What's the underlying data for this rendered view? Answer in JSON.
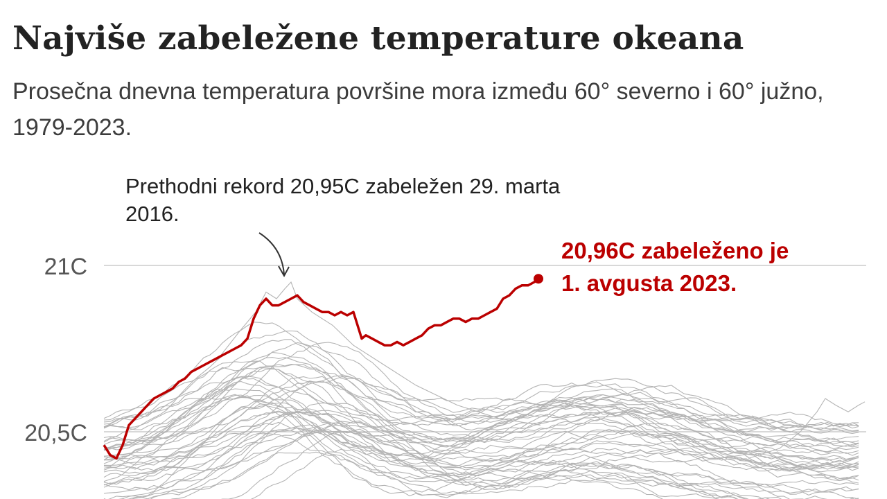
{
  "title": "Najviše zabeležene temperature okeana",
  "subtitle": "Prosečna dnevna temperatura površine mora između 60° severno i 60° južno, 1979-2023.",
  "chart_data": {
    "type": "line",
    "ylim": [
      20.3,
      21.5
    ],
    "y_ticks": [
      {
        "value": 21.0,
        "label": "21C"
      },
      {
        "value": 20.5,
        "label": "20,5C"
      }
    ],
    "colors": {
      "highlight": "#bb0000",
      "background_lines": "#b4b4b4",
      "grid": "#cccccc",
      "text": "#222222"
    },
    "highlight_series": {
      "year": "2023",
      "values": [
        [
          0.0,
          20.46
        ],
        [
          0.3,
          20.43
        ],
        [
          0.6,
          20.42
        ],
        [
          0.9,
          20.46
        ],
        [
          1.2,
          20.52
        ],
        [
          1.5,
          20.54
        ],
        [
          1.8,
          20.56
        ],
        [
          2.1,
          20.58
        ],
        [
          2.4,
          20.6
        ],
        [
          2.7,
          20.61
        ],
        [
          3.0,
          20.62
        ],
        [
          3.3,
          20.63
        ],
        [
          3.6,
          20.65
        ],
        [
          3.9,
          20.66
        ],
        [
          4.2,
          20.68
        ],
        [
          4.5,
          20.69
        ],
        [
          4.8,
          20.7
        ],
        [
          5.1,
          20.71
        ],
        [
          5.4,
          20.72
        ],
        [
          5.7,
          20.73
        ],
        [
          6.0,
          20.74
        ],
        [
          6.3,
          20.75
        ],
        [
          6.6,
          20.76
        ],
        [
          6.9,
          20.78
        ],
        [
          7.2,
          20.84
        ],
        [
          7.5,
          20.88
        ],
        [
          7.8,
          20.9
        ],
        [
          8.1,
          20.88
        ],
        [
          8.4,
          20.88
        ],
        [
          8.7,
          20.89
        ],
        [
          9.0,
          20.9
        ],
        [
          9.3,
          20.91
        ],
        [
          9.6,
          20.89
        ],
        [
          9.9,
          20.88
        ],
        [
          10.2,
          20.87
        ],
        [
          10.5,
          20.86
        ],
        [
          10.8,
          20.86
        ],
        [
          11.1,
          20.85
        ],
        [
          11.4,
          20.86
        ],
        [
          11.7,
          20.85
        ],
        [
          12.0,
          20.86
        ],
        [
          12.2,
          20.82
        ],
        [
          12.4,
          20.78
        ],
        [
          12.6,
          20.79
        ],
        [
          12.9,
          20.78
        ],
        [
          13.2,
          20.77
        ],
        [
          13.5,
          20.76
        ],
        [
          13.8,
          20.76
        ],
        [
          14.1,
          20.77
        ],
        [
          14.4,
          20.76
        ],
        [
          14.7,
          20.77
        ],
        [
          15.0,
          20.78
        ],
        [
          15.3,
          20.79
        ],
        [
          15.6,
          20.81
        ],
        [
          15.9,
          20.82
        ],
        [
          16.2,
          20.82
        ],
        [
          16.5,
          20.83
        ],
        [
          16.8,
          20.84
        ],
        [
          17.1,
          20.84
        ],
        [
          17.4,
          20.83
        ],
        [
          17.7,
          20.84
        ],
        [
          18.0,
          20.84
        ],
        [
          18.3,
          20.85
        ],
        [
          18.6,
          20.86
        ],
        [
          18.9,
          20.87
        ],
        [
          19.2,
          20.9
        ],
        [
          19.5,
          20.91
        ],
        [
          19.8,
          20.93
        ],
        [
          20.1,
          20.94
        ],
        [
          20.4,
          20.94
        ],
        [
          20.7,
          20.95
        ],
        [
          20.9,
          20.96
        ]
      ]
    },
    "annotations": [
      {
        "id": "record-2016",
        "text": "Prethodni rekord 20,95C zabeležen 29. marta 2016.",
        "lines": [
          "Prethodni rekord 20,95C zabeležen 29. marta",
          "2016."
        ],
        "color": "#222222"
      },
      {
        "id": "record-2023",
        "text": "20,96C zabeleženo je 1. avgusta 2023.",
        "lines": [
          "20,96C zabeleženo je",
          "1. avgusta 2023."
        ],
        "color": "#bb0000"
      }
    ]
  }
}
